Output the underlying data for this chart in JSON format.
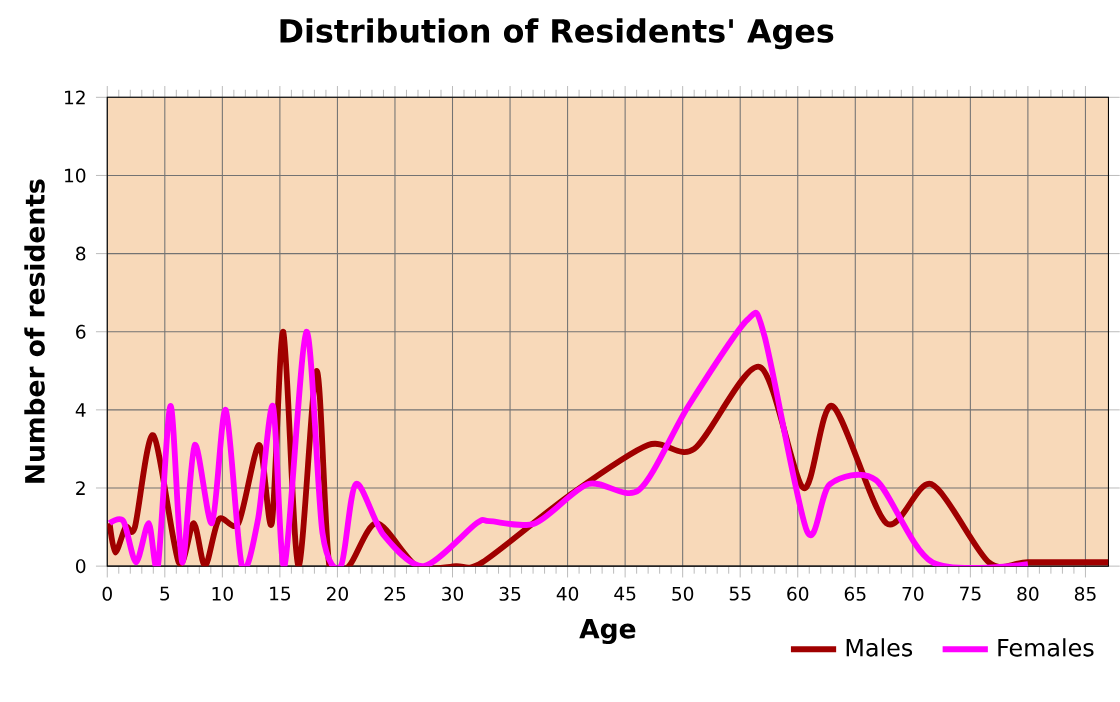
{
  "chart_data": {
    "type": "line",
    "title": "Distribution of Residents' Ages",
    "xlabel": "Age",
    "ylabel": "Number of residents",
    "xlim": [
      0,
      87
    ],
    "xticks": [
      0,
      5,
      10,
      15,
      20,
      25,
      30,
      35,
      40,
      45,
      50,
      55,
      60,
      65,
      70,
      75,
      80,
      85
    ],
    "ylim": [
      0,
      12
    ],
    "yticks": [
      0,
      2,
      4,
      6,
      8,
      10,
      12
    ],
    "grid": true,
    "legend": "bottom right",
    "marker": "none",
    "line_style": "solid",
    "series": [
      {
        "name": "Males",
        "color": "#a00000",
        "x": [
          0.2,
          0.7,
          1.6,
          2.4,
          4.0,
          6.2,
          7.5,
          8.5,
          9.7,
          11.4,
          13.2,
          14.3,
          15.3,
          16.6,
          18.2,
          19.3,
          21,
          23.4,
          26.9,
          30.3,
          32.6,
          40.1,
          47,
          51,
          56.7,
          60.5,
          63,
          67.7,
          71.6,
          76.6,
          80,
          87
        ],
        "values": [
          1.1,
          0.35,
          1.0,
          1.0,
          3.35,
          0.1,
          1.1,
          0,
          1.2,
          1.1,
          3.1,
          1.1,
          6.0,
          0,
          5.0,
          0,
          0,
          1.1,
          0,
          0,
          0.1,
          1.8,
          3.1,
          3.0,
          5.1,
          2.0,
          4.1,
          1.1,
          2.1,
          0.1,
          0.1,
          0.1
        ]
      },
      {
        "name": "Females",
        "color": "#ff00ff",
        "x": [
          0.2,
          1.4,
          2.5,
          3.6,
          4.4,
          5.5,
          6.5,
          7.6,
          9.1,
          10.3,
          11.7,
          13.1,
          14.4,
          15.4,
          17.3,
          18.7,
          20.3,
          21.6,
          24,
          27.5,
          32.1,
          33.2,
          37.2,
          41.8,
          46.2,
          50.5,
          55.6,
          57.1,
          60.8,
          62.8,
          66.8,
          71.7,
          80
        ],
        "values": [
          1.1,
          1.15,
          0.1,
          1.1,
          0,
          4.1,
          0.1,
          3.1,
          1.1,
          4.0,
          0,
          1.2,
          4.1,
          0,
          6.0,
          0.85,
          0,
          2.1,
          0.8,
          0,
          1.1,
          1.15,
          1.1,
          2.1,
          1.95,
          4.1,
          6.3,
          5.9,
          0.9,
          2.1,
          2.2,
          0.1,
          0.05
        ]
      }
    ]
  }
}
